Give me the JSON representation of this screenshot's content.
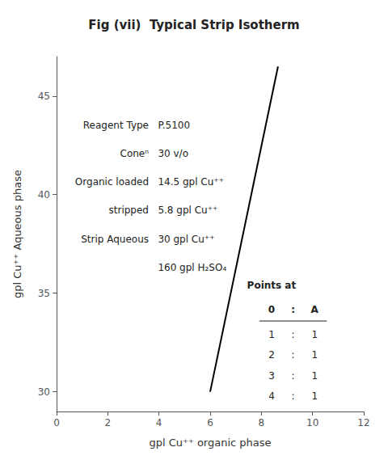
{
  "chart_data": {
    "type": "line",
    "title": "Fig (vii)  Typical Strip Isotherm",
    "xlabel": "gpl Cu⁺⁺ organic phase",
    "ylabel": "gpl Cu⁺⁺ Aqueous phase",
    "x": [
      6.0,
      8.65
    ],
    "values": [
      30.0,
      46.5
    ],
    "color": "#000000",
    "xlim": [
      0,
      12
    ],
    "ylim": [
      29,
      47
    ],
    "xticks": [
      0,
      2,
      4,
      6,
      8,
      10,
      12
    ],
    "yticks": [
      30,
      35,
      40,
      45
    ],
    "grid": false,
    "annotations": {
      "info": [
        [
          "Reagent Type",
          "P.5100"
        ],
        [
          "Coneⁿ",
          "30 v/o"
        ],
        [
          "Organic loaded",
          "14.5 gpl Cu⁺⁺"
        ],
        [
          "stripped",
          "5.8 gpl Cu⁺⁺"
        ],
        [
          "Strip Aqueous",
          "30 gpl Cu⁺⁺"
        ],
        [
          null,
          "160 gpl H₂SO₄"
        ]
      ],
      "table": {
        "title": "Points at",
        "header": [
          "0",
          ":",
          "A"
        ],
        "rows": [
          [
            "1",
            ":",
            "1"
          ],
          [
            "2",
            ":",
            "1"
          ],
          [
            "3",
            ":",
            "1"
          ],
          [
            "4",
            ":",
            "1"
          ]
        ]
      }
    }
  }
}
